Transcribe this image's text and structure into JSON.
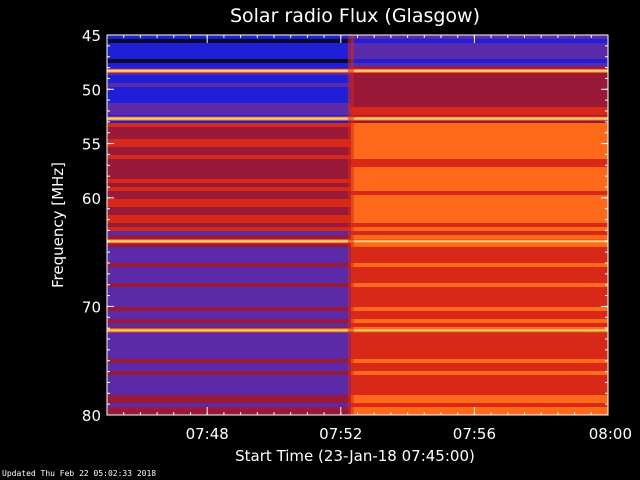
{
  "chart_data": {
    "type": "heatmap",
    "title": "Solar radio Flux (Glasgow)",
    "ylabel": "Frequency [MHz]",
    "xlabel": "Start Time (23-Jan-18 07:45:00)",
    "ylim": [
      45,
      80
    ],
    "y_inverted": true,
    "x_range_minutes": [
      0,
      15
    ],
    "y_ticks": [
      {
        "value": 45,
        "label": "45"
      },
      {
        "value": 50,
        "label": "50"
      },
      {
        "value": 55,
        "label": "55"
      },
      {
        "value": 60,
        "label": "60"
      },
      {
        "value": 70,
        "label": "70"
      },
      {
        "value": 80,
        "label": "80"
      }
    ],
    "x_ticks": [
      {
        "minute": 3,
        "label": "07:48"
      },
      {
        "minute": 7,
        "label": "07:52"
      },
      {
        "minute": 11,
        "label": "07:56"
      },
      {
        "minute": 15,
        "label": "08:00"
      }
    ],
    "transition_minute": 7.3,
    "colormap": [
      "#0a0a30",
      "#1f1fd8",
      "#5a2aa8",
      "#9a1838",
      "#d82818",
      "#ff6a1a",
      "#ffd070",
      "#ffffff"
    ],
    "bright_lines_mhz": [
      48.3,
      52.7,
      64.0,
      72.2
    ],
    "grid": false,
    "legend": "none"
  },
  "footer": "Updated Thu Feb 22 05:02:33 2018"
}
